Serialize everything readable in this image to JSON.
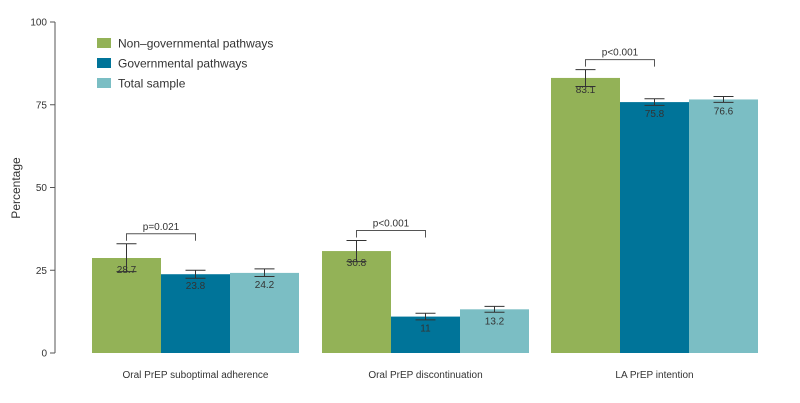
{
  "chart_data": {
    "type": "bar",
    "ylabel": "Percentage",
    "xlabel": "",
    "ylim": [
      0,
      100
    ],
    "yticks": [
      0,
      25,
      50,
      75,
      100
    ],
    "grid": false,
    "legend_position": "top-left",
    "categories": [
      "Oral PrEP suboptimal adherence",
      "Oral PrEP discontinuation",
      "LA PrEP intention"
    ],
    "series": [
      {
        "name": "Non–governmental pathways",
        "color": "#93b257",
        "values": [
          28.7,
          30.8,
          83.1
        ],
        "value_labels": [
          "28.7",
          "30.8",
          "83.1"
        ],
        "error_low": [
          24.6,
          27.6,
          80.5
        ],
        "error_high": [
          33.0,
          34.0,
          85.6
        ]
      },
      {
        "name": "Governmental pathways",
        "color": "#007499",
        "values": [
          23.8,
          11.0,
          75.8
        ],
        "value_labels": [
          "23.8",
          "11",
          "75.8"
        ],
        "error_low": [
          22.6,
          10.0,
          74.8
        ],
        "error_high": [
          25.0,
          12.0,
          76.8
        ]
      },
      {
        "name": "Total sample",
        "color": "#7bbec4",
        "values": [
          24.2,
          13.2,
          76.6
        ],
        "value_labels": [
          "24.2",
          "13.2",
          "76.6"
        ],
        "error_low": [
          23.1,
          12.3,
          75.7
        ],
        "error_high": [
          25.4,
          14.1,
          77.5
        ]
      }
    ],
    "annotations": [
      {
        "category_index": 0,
        "text": "p=0.021"
      },
      {
        "category_index": 1,
        "text": "p<0.001"
      },
      {
        "category_index": 2,
        "text": "p<0.001"
      }
    ]
  }
}
